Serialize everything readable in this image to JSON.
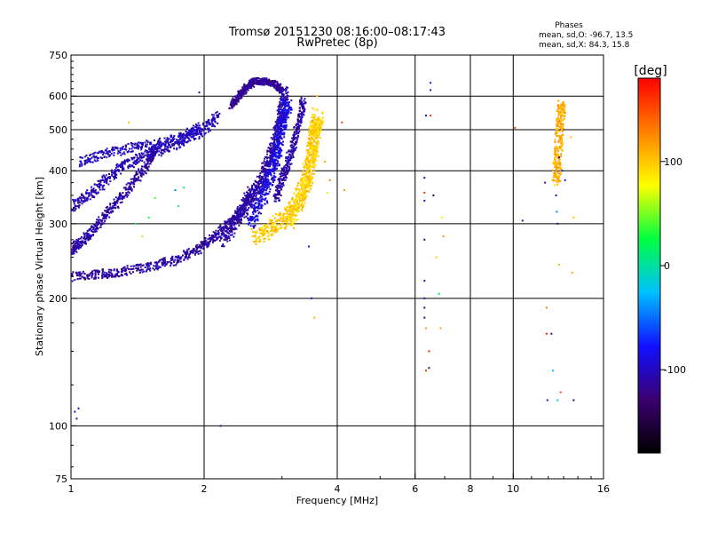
{
  "chart_data": {
    "type": "scatter",
    "title": "Tromsø 20151230 08:16:00–08:17:43",
    "subtitle": "RwPretec (8p)",
    "xlabel": "Frequency [MHz]",
    "ylabel": "Stationary phase Virtual Height [km]",
    "x_scale": "log",
    "y_scale": "log",
    "xlim": [
      1,
      16
    ],
    "ylim": [
      75,
      750
    ],
    "x_ticks": [
      1,
      2,
      4,
      6,
      8,
      10,
      16
    ],
    "y_ticks": [
      75,
      100,
      200,
      300,
      400,
      500,
      600,
      750
    ],
    "x_grid": [
      2,
      4,
      6,
      8,
      10
    ],
    "y_grid": [
      100,
      200,
      300,
      400,
      500,
      600
    ],
    "grid": true,
    "stats": {
      "title": "Phases",
      "line1": "mean, sd,O: -96.7, 13.5",
      "line2": "mean, sd,X:  84.3, 15.8"
    },
    "colorbar": {
      "label": "[deg]",
      "range": [
        -180,
        180
      ],
      "ticks": [
        100,
        0,
        -100
      ],
      "colormap": "rainbow",
      "colors": [
        "#000000",
        "#3a0070",
        "#1010ff",
        "#00c0ff",
        "#00ff40",
        "#ffff00",
        "#ff8000",
        "#ff0000"
      ]
    },
    "traces": [
      {
        "kind": "curve",
        "phase": -110,
        "spread": 8,
        "points": [
          [
            1.0,
            225
          ],
          [
            1.15,
            228
          ],
          [
            1.3,
            231
          ],
          [
            1.5,
            237
          ],
          [
            1.7,
            245
          ],
          [
            1.9,
            258
          ],
          [
            2.05,
            272
          ],
          [
            2.2,
            290
          ],
          [
            2.35,
            310
          ],
          [
            2.45,
            330
          ],
          [
            2.55,
            360
          ]
        ]
      },
      {
        "kind": "curve",
        "phase": -110,
        "spread": 8,
        "points": [
          [
            1.0,
            260
          ],
          [
            1.05,
            270
          ],
          [
            1.12,
            290
          ],
          [
            1.2,
            315
          ],
          [
            1.3,
            345
          ],
          [
            1.4,
            380
          ],
          [
            1.5,
            420
          ],
          [
            1.55,
            450
          ]
        ]
      },
      {
        "kind": "curve",
        "phase": -105,
        "spread": 9,
        "points": [
          [
            1.0,
            330
          ],
          [
            1.1,
            350
          ],
          [
            1.2,
            380
          ],
          [
            1.3,
            410
          ],
          [
            1.45,
            430
          ],
          [
            1.6,
            450
          ],
          [
            1.8,
            470
          ],
          [
            2.0,
            500
          ],
          [
            2.15,
            540
          ]
        ]
      },
      {
        "kind": "curve",
        "phase": -100,
        "spread": 8,
        "points": [
          [
            1.05,
            420
          ],
          [
            1.2,
            440
          ],
          [
            1.4,
            455
          ],
          [
            1.6,
            465
          ],
          [
            1.8,
            480
          ],
          [
            1.95,
            510
          ]
        ]
      },
      {
        "kind": "curve",
        "phase": -115,
        "spread": 6,
        "points": [
          [
            2.3,
            570
          ],
          [
            2.4,
            600
          ],
          [
            2.5,
            630
          ],
          [
            2.6,
            650
          ],
          [
            2.75,
            650
          ],
          [
            2.9,
            640
          ],
          [
            3.0,
            615
          ]
        ]
      },
      {
        "kind": "curve",
        "phase": -110,
        "spread": 10,
        "points": [
          [
            2.2,
            270
          ],
          [
            2.35,
            300
          ],
          [
            2.5,
            330
          ],
          [
            2.62,
            360
          ],
          [
            2.72,
            390
          ],
          [
            2.8,
            420
          ],
          [
            2.88,
            460
          ],
          [
            2.95,
            510
          ],
          [
            3.0,
            560
          ],
          [
            3.05,
            620
          ]
        ]
      },
      {
        "kind": "curve",
        "phase": -90,
        "spread": 12,
        "points": [
          [
            2.55,
            300
          ],
          [
            2.65,
            330
          ],
          [
            2.75,
            360
          ],
          [
            2.82,
            390
          ],
          [
            2.88,
            420
          ],
          [
            2.93,
            450
          ],
          [
            2.98,
            500
          ],
          [
            3.02,
            540
          ],
          [
            3.1,
            580
          ]
        ]
      },
      {
        "kind": "curve",
        "phase": -110,
        "spread": 8,
        "points": [
          [
            2.9,
            340
          ],
          [
            3.0,
            380
          ],
          [
            3.1,
            420
          ],
          [
            3.2,
            470
          ],
          [
            3.3,
            530
          ],
          [
            3.35,
            590
          ]
        ]
      },
      {
        "kind": "curve",
        "phase": 100,
        "spread": 14,
        "points": [
          [
            2.6,
            280
          ],
          [
            2.8,
            290
          ],
          [
            3.0,
            305
          ],
          [
            3.2,
            330
          ],
          [
            3.35,
            360
          ],
          [
            3.45,
            400
          ],
          [
            3.52,
            450
          ],
          [
            3.57,
            500
          ],
          [
            3.62,
            540
          ]
        ]
      },
      {
        "kind": "curve",
        "phase": 95,
        "spread": 12,
        "points": [
          [
            3.1,
            300
          ],
          [
            3.25,
            330
          ],
          [
            3.38,
            370
          ],
          [
            3.48,
            420
          ],
          [
            3.55,
            480
          ],
          [
            3.6,
            520
          ]
        ]
      },
      {
        "kind": "curve",
        "phase": 110,
        "spread": 10,
        "points": [
          [
            12.5,
            380
          ],
          [
            12.6,
            420
          ],
          [
            12.7,
            480
          ],
          [
            12.8,
            540
          ],
          [
            12.9,
            570
          ]
        ]
      }
    ],
    "scatter_points": [
      [
        1.02,
        108,
        -110
      ],
      [
        1.03,
        104,
        -110
      ],
      [
        1.04,
        110,
        -100
      ],
      [
        2.18,
        100,
        -110
      ],
      [
        1.95,
        612,
        -100
      ],
      [
        6.3,
        385,
        -100
      ],
      [
        6.3,
        355,
        160
      ],
      [
        6.3,
        340,
        -80
      ],
      [
        6.3,
        275,
        -110
      ],
      [
        6.3,
        220,
        -110
      ],
      [
        6.3,
        200,
        -110
      ],
      [
        6.3,
        190,
        -120
      ],
      [
        6.3,
        180,
        -130
      ],
      [
        6.35,
        540,
        -100
      ],
      [
        6.35,
        170,
        120
      ],
      [
        6.35,
        135,
        160
      ],
      [
        6.5,
        645,
        -90
      ],
      [
        6.5,
        620,
        -100
      ],
      [
        6.5,
        540,
        160
      ],
      [
        6.45,
        150,
        170
      ],
      [
        6.45,
        137,
        -130
      ],
      [
        6.6,
        350,
        -150
      ],
      [
        6.7,
        250,
        100
      ],
      [
        6.8,
        205,
        20
      ],
      [
        6.85,
        170,
        110
      ],
      [
        6.9,
        310,
        80
      ],
      [
        6.95,
        280,
        120
      ],
      [
        10.1,
        505,
        160
      ],
      [
        10.5,
        305,
        -110
      ],
      [
        11.8,
        375,
        -100
      ],
      [
        11.9,
        190,
        130
      ],
      [
        11.9,
        165,
        170
      ],
      [
        11.95,
        115,
        -90
      ],
      [
        12.2,
        165,
        -120
      ],
      [
        12.3,
        135,
        -30
      ],
      [
        12.4,
        370,
        90
      ],
      [
        12.5,
        350,
        -110
      ],
      [
        12.55,
        320,
        -40
      ],
      [
        12.6,
        300,
        -110
      ],
      [
        12.6,
        115,
        -20
      ],
      [
        12.7,
        430,
        -120
      ],
      [
        12.7,
        240,
        100
      ],
      [
        12.8,
        120,
        150
      ],
      [
        12.9,
        400,
        -100
      ],
      [
        13.1,
        380,
        -80
      ],
      [
        13.6,
        230,
        110
      ],
      [
        13.7,
        310,
        100
      ],
      [
        13.7,
        115,
        -110
      ],
      [
        13.5,
        480,
        100
      ],
      [
        12.85,
        570,
        110
      ],
      [
        1.35,
        520,
        100
      ],
      [
        1.55,
        345,
        40
      ],
      [
        1.5,
        310,
        30
      ],
      [
        1.72,
        360,
        -40
      ],
      [
        1.75,
        330,
        10
      ],
      [
        1.8,
        365,
        10
      ],
      [
        1.45,
        280,
        60
      ],
      [
        1.4,
        300,
        20
      ],
      [
        3.5,
        200,
        -110
      ],
      [
        3.55,
        180,
        110
      ],
      [
        3.6,
        600,
        100
      ],
      [
        3.75,
        420,
        110
      ],
      [
        3.8,
        355,
        70
      ],
      [
        3.85,
        380,
        130
      ],
      [
        4.1,
        520,
        150
      ],
      [
        4.15,
        360,
        120
      ],
      [
        3.45,
        265,
        -80
      ]
    ]
  }
}
